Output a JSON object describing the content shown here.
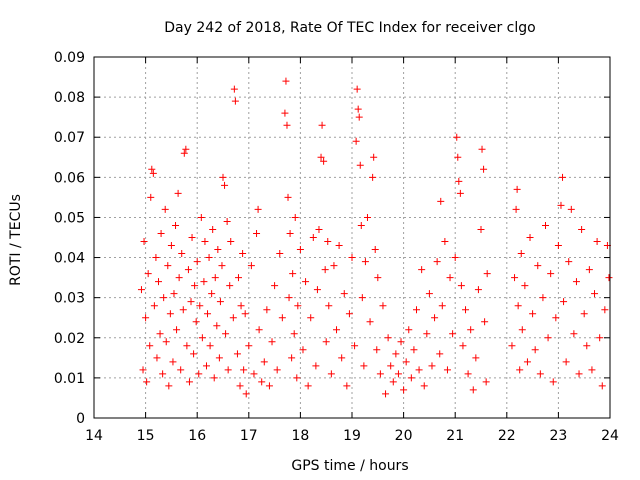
{
  "chart_data": {
    "type": "scatter",
    "title": "Day 242 of 2018, Rate Of TEC Index for receiver clgo",
    "xlabel": "GPS time / hours",
    "ylabel": "ROTI / TECUs",
    "xlim": [
      14,
      24
    ],
    "ylim": [
      0,
      0.09
    ],
    "x_ticks": [
      "14",
      "15",
      "16",
      "17",
      "18",
      "19",
      "20",
      "21",
      "22",
      "23",
      "24"
    ],
    "y_ticks": [
      "0",
      "0.01",
      "0.02",
      "0.03",
      "0.04",
      "0.05",
      "0.06",
      "0.07",
      "0.08",
      "0.09"
    ],
    "grid": true,
    "marker": "+",
    "color": "#ff0000",
    "series": [
      {
        "points": [
          [
            14.92,
            0.032
          ],
          [
            14.95,
            0.012
          ],
          [
            14.97,
            0.044
          ],
          [
            15.0,
            0.025
          ],
          [
            15.02,
            0.009
          ],
          [
            15.05,
            0.036
          ],
          [
            15.08,
            0.018
          ],
          [
            15.1,
            0.055
          ],
          [
            15.12,
            0.062
          ],
          [
            15.15,
            0.061
          ],
          [
            15.17,
            0.028
          ],
          [
            15.2,
            0.04
          ],
          [
            15.22,
            0.015
          ],
          [
            15.25,
            0.034
          ],
          [
            15.28,
            0.021
          ],
          [
            15.3,
            0.046
          ],
          [
            15.33,
            0.011
          ],
          [
            15.35,
            0.03
          ],
          [
            15.38,
            0.052
          ],
          [
            15.4,
            0.019
          ],
          [
            15.43,
            0.038
          ],
          [
            15.45,
            0.008
          ],
          [
            15.48,
            0.026
          ],
          [
            15.5,
            0.043
          ],
          [
            15.53,
            0.014
          ],
          [
            15.55,
            0.031
          ],
          [
            15.58,
            0.048
          ],
          [
            15.6,
            0.022
          ],
          [
            15.63,
            0.056
          ],
          [
            15.65,
            0.035
          ],
          [
            15.68,
            0.012
          ],
          [
            15.7,
            0.041
          ],
          [
            15.73,
            0.027
          ],
          [
            15.75,
            0.066
          ],
          [
            15.78,
            0.067
          ],
          [
            15.8,
            0.018
          ],
          [
            15.83,
            0.037
          ],
          [
            15.85,
            0.009
          ],
          [
            15.88,
            0.029
          ],
          [
            15.9,
            0.045
          ],
          [
            15.93,
            0.016
          ],
          [
            15.95,
            0.033
          ],
          [
            15.98,
            0.024
          ],
          [
            16.0,
            0.039
          ],
          [
            16.03,
            0.011
          ],
          [
            16.05,
            0.028
          ],
          [
            16.08,
            0.05
          ],
          [
            16.1,
            0.02
          ],
          [
            16.13,
            0.034
          ],
          [
            16.15,
            0.044
          ],
          [
            16.18,
            0.013
          ],
          [
            16.2,
            0.026
          ],
          [
            16.23,
            0.04
          ],
          [
            16.25,
            0.018
          ],
          [
            16.28,
            0.031
          ],
          [
            16.3,
            0.047
          ],
          [
            16.33,
            0.01
          ],
          [
            16.35,
            0.035
          ],
          [
            16.38,
            0.023
          ],
          [
            16.4,
            0.042
          ],
          [
            16.43,
            0.015
          ],
          [
            16.45,
            0.029
          ],
          [
            16.48,
            0.038
          ],
          [
            16.5,
            0.06
          ],
          [
            16.53,
            0.058
          ],
          [
            16.55,
            0.021
          ],
          [
            16.58,
            0.049
          ],
          [
            16.6,
            0.012
          ],
          [
            16.63,
            0.033
          ],
          [
            16.65,
            0.044
          ],
          [
            16.7,
            0.025
          ],
          [
            16.72,
            0.082
          ],
          [
            16.74,
            0.079
          ],
          [
            16.78,
            0.016
          ],
          [
            16.8,
            0.035
          ],
          [
            16.83,
            0.008
          ],
          [
            16.85,
            0.028
          ],
          [
            16.88,
            0.041
          ],
          [
            16.9,
            0.012
          ],
          [
            16.93,
            0.026
          ],
          [
            16.95,
            0.006
          ],
          [
            17.0,
            0.018
          ],
          [
            17.05,
            0.038
          ],
          [
            17.1,
            0.011
          ],
          [
            17.15,
            0.046
          ],
          [
            17.18,
            0.052
          ],
          [
            17.2,
            0.022
          ],
          [
            17.25,
            0.009
          ],
          [
            17.3,
            0.014
          ],
          [
            17.35,
            0.027
          ],
          [
            17.4,
            0.008
          ],
          [
            17.45,
            0.019
          ],
          [
            17.5,
            0.033
          ],
          [
            17.55,
            0.012
          ],
          [
            17.6,
            0.041
          ],
          [
            17.65,
            0.025
          ],
          [
            17.7,
            0.076
          ],
          [
            17.72,
            0.084
          ],
          [
            17.74,
            0.073
          ],
          [
            17.76,
            0.055
          ],
          [
            17.78,
            0.03
          ],
          [
            17.8,
            0.046
          ],
          [
            17.83,
            0.015
          ],
          [
            17.85,
            0.036
          ],
          [
            17.88,
            0.021
          ],
          [
            17.9,
            0.05
          ],
          [
            17.93,
            0.01
          ],
          [
            17.95,
            0.028
          ],
          [
            18.0,
            0.042
          ],
          [
            18.05,
            0.017
          ],
          [
            18.1,
            0.034
          ],
          [
            18.15,
            0.008
          ],
          [
            18.2,
            0.025
          ],
          [
            18.25,
            0.045
          ],
          [
            18.3,
            0.013
          ],
          [
            18.33,
            0.032
          ],
          [
            18.36,
            0.047
          ],
          [
            18.4,
            0.065
          ],
          [
            18.42,
            0.073
          ],
          [
            18.45,
            0.064
          ],
          [
            18.48,
            0.037
          ],
          [
            18.5,
            0.019
          ],
          [
            18.53,
            0.044
          ],
          [
            18.55,
            0.028
          ],
          [
            18.6,
            0.011
          ],
          [
            18.65,
            0.038
          ],
          [
            18.7,
            0.022
          ],
          [
            18.75,
            0.043
          ],
          [
            18.8,
            0.015
          ],
          [
            18.85,
            0.031
          ],
          [
            18.9,
            0.008
          ],
          [
            18.95,
            0.026
          ],
          [
            19.0,
            0.04
          ],
          [
            19.05,
            0.018
          ],
          [
            19.08,
            0.069
          ],
          [
            19.1,
            0.082
          ],
          [
            19.12,
            0.077
          ],
          [
            19.14,
            0.075
          ],
          [
            19.16,
            0.063
          ],
          [
            19.18,
            0.048
          ],
          [
            19.2,
            0.03
          ],
          [
            19.23,
            0.013
          ],
          [
            19.26,
            0.039
          ],
          [
            19.3,
            0.05
          ],
          [
            19.35,
            0.024
          ],
          [
            19.4,
            0.06
          ],
          [
            19.42,
            0.065
          ],
          [
            19.45,
            0.042
          ],
          [
            19.48,
            0.017
          ],
          [
            19.5,
            0.035
          ],
          [
            19.55,
            0.011
          ],
          [
            19.6,
            0.028
          ],
          [
            19.65,
            0.006
          ],
          [
            19.7,
            0.02
          ],
          [
            19.75,
            0.013
          ],
          [
            19.8,
            0.009
          ],
          [
            19.85,
            0.016
          ],
          [
            19.9,
            0.011
          ],
          [
            19.95,
            0.019
          ],
          [
            20.0,
            0.007
          ],
          [
            20.05,
            0.014
          ],
          [
            20.1,
            0.022
          ],
          [
            20.15,
            0.01
          ],
          [
            20.2,
            0.017
          ],
          [
            20.25,
            0.027
          ],
          [
            20.3,
            0.012
          ],
          [
            20.35,
            0.037
          ],
          [
            20.4,
            0.008
          ],
          [
            20.45,
            0.021
          ],
          [
            20.5,
            0.031
          ],
          [
            20.55,
            0.013
          ],
          [
            20.6,
            0.025
          ],
          [
            20.65,
            0.039
          ],
          [
            20.7,
            0.016
          ],
          [
            20.72,
            0.054
          ],
          [
            20.75,
            0.028
          ],
          [
            20.8,
            0.044
          ],
          [
            20.85,
            0.012
          ],
          [
            20.9,
            0.035
          ],
          [
            20.95,
            0.021
          ],
          [
            21.0,
            0.04
          ],
          [
            21.03,
            0.07
          ],
          [
            21.05,
            0.065
          ],
          [
            21.07,
            0.059
          ],
          [
            21.1,
            0.056
          ],
          [
            21.12,
            0.033
          ],
          [
            21.15,
            0.018
          ],
          [
            21.2,
            0.027
          ],
          [
            21.25,
            0.011
          ],
          [
            21.3,
            0.022
          ],
          [
            21.35,
            0.007
          ],
          [
            21.4,
            0.015
          ],
          [
            21.45,
            0.032
          ],
          [
            21.5,
            0.047
          ],
          [
            21.52,
            0.067
          ],
          [
            21.55,
            0.062
          ],
          [
            21.57,
            0.024
          ],
          [
            21.6,
            0.009
          ],
          [
            21.62,
            0.036
          ],
          [
            22.1,
            0.018
          ],
          [
            22.15,
            0.035
          ],
          [
            22.18,
            0.052
          ],
          [
            22.2,
            0.057
          ],
          [
            22.22,
            0.028
          ],
          [
            22.25,
            0.012
          ],
          [
            22.28,
            0.041
          ],
          [
            22.3,
            0.022
          ],
          [
            22.35,
            0.033
          ],
          [
            22.4,
            0.014
          ],
          [
            22.45,
            0.045
          ],
          [
            22.5,
            0.026
          ],
          [
            22.55,
            0.017
          ],
          [
            22.6,
            0.038
          ],
          [
            22.65,
            0.011
          ],
          [
            22.7,
            0.03
          ],
          [
            22.75,
            0.048
          ],
          [
            22.8,
            0.02
          ],
          [
            22.85,
            0.036
          ],
          [
            22.9,
            0.009
          ],
          [
            22.95,
            0.025
          ],
          [
            23.0,
            0.043
          ],
          [
            23.05,
            0.053
          ],
          [
            23.08,
            0.06
          ],
          [
            23.1,
            0.029
          ],
          [
            23.15,
            0.014
          ],
          [
            23.2,
            0.039
          ],
          [
            23.25,
            0.052
          ],
          [
            23.3,
            0.021
          ],
          [
            23.35,
            0.034
          ],
          [
            23.4,
            0.011
          ],
          [
            23.45,
            0.047
          ],
          [
            23.5,
            0.026
          ],
          [
            23.55,
            0.018
          ],
          [
            23.6,
            0.037
          ],
          [
            23.65,
            0.012
          ],
          [
            23.7,
            0.031
          ],
          [
            23.75,
            0.044
          ],
          [
            23.8,
            0.02
          ],
          [
            23.85,
            0.008
          ],
          [
            23.9,
            0.027
          ],
          [
            23.95,
            0.043
          ],
          [
            23.98,
            0.035
          ]
        ]
      }
    ]
  }
}
